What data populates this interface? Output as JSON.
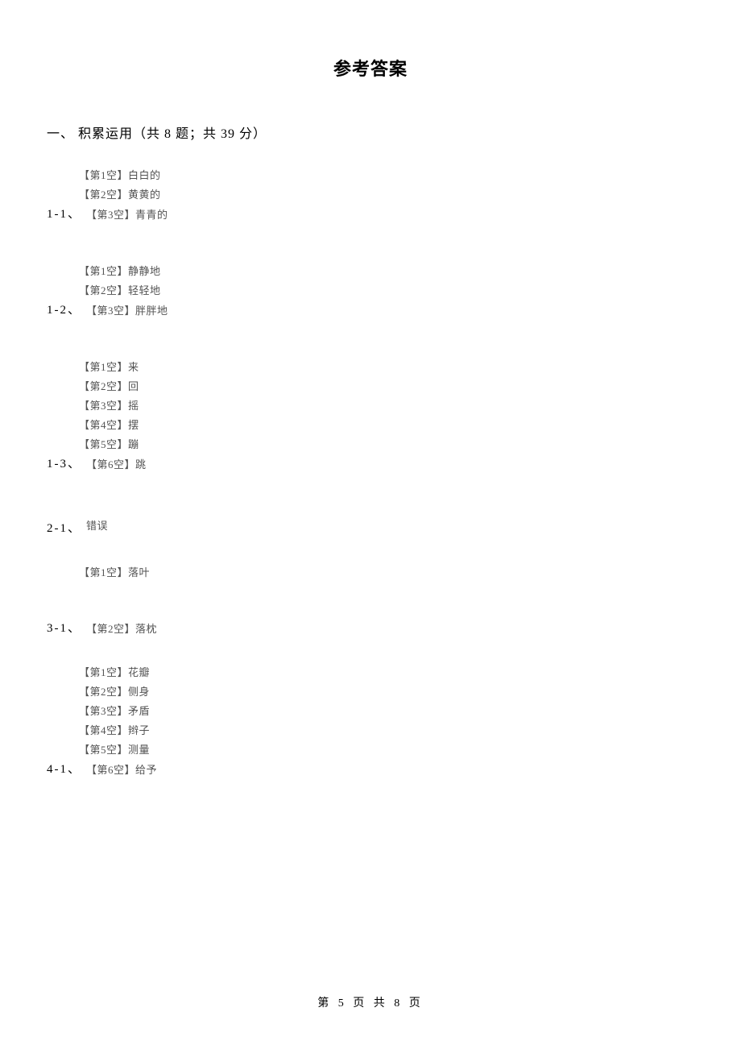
{
  "title": "参考答案",
  "section_heading": "一、 积累运用（共 8 题；共 39 分）",
  "groups": [
    {
      "num": "1-1、",
      "lines": [
        "【第1空】白白的",
        "【第2空】黄黄的",
        "【第3空】青青的"
      ]
    },
    {
      "num": "1-2、",
      "lines": [
        "【第1空】静静地",
        "【第2空】轻轻地",
        "【第3空】胖胖地"
      ]
    },
    {
      "num": "1-3、",
      "lines": [
        "【第1空】来",
        "【第2空】回",
        "【第3空】摇",
        "【第4空】摆",
        "【第5空】蹦",
        "【第6空】跳"
      ]
    },
    {
      "num": "2-1、",
      "lines": [
        "错误"
      ]
    },
    {
      "num": "3-1、",
      "lines": [
        "【第1空】落叶",
        "",
        "【第2空】落枕"
      ]
    },
    {
      "num": "4-1、",
      "lines": [
        "【第1空】花瓣",
        "【第2空】侧身",
        "【第3空】矛盾",
        "【第4空】辫子",
        "【第5空】测量",
        "【第6空】给予"
      ]
    }
  ],
  "footer": "第 5 页 共 8 页",
  "colors": {
    "background": "#ffffff",
    "title_text": "#000000",
    "body_text": "#000000",
    "answer_text": "#535353"
  },
  "typography": {
    "title_fontsize": 22,
    "heading_fontsize": 16,
    "answer_fontsize": 13,
    "num_fontsize": 15,
    "footer_fontsize": 14,
    "font_family": "SimSun"
  }
}
